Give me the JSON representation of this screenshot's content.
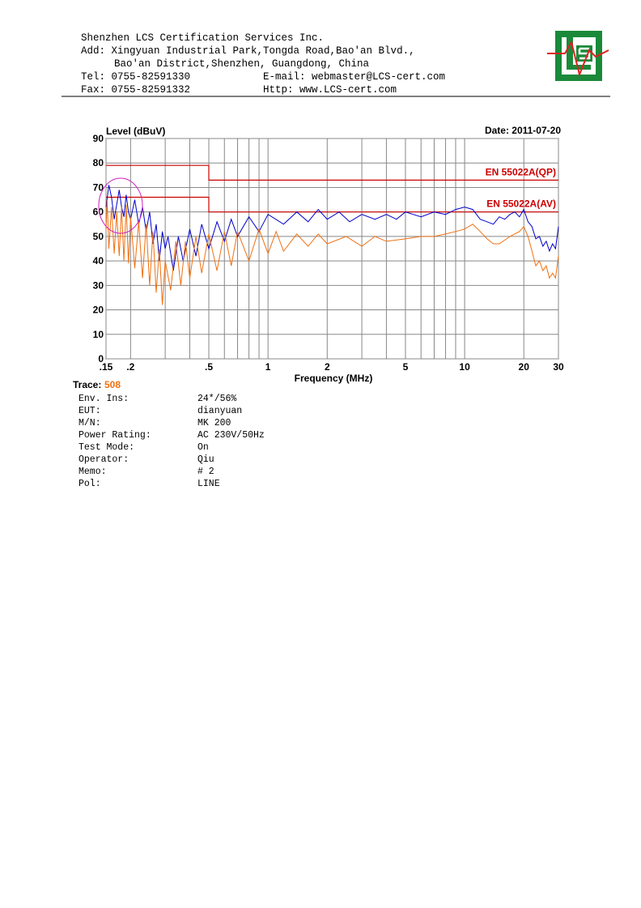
{
  "header": {
    "company": "Shenzhen LCS Certification Services Inc.",
    "address": [
      "Add: Xingyuan Industrial Park,Tongda Road,Bao'an Blvd.,",
      "Bao'an District,Shenzhen, Guangdong, China"
    ],
    "contact": [
      [
        "Tel: 0755-82591330",
        "E-mail: webmaster@LCS-cert.com"
      ],
      [
        "Fax: 0755-82591332",
        "Http: www.LCS-cert.com"
      ]
    ]
  },
  "chart_data": {
    "type": "line",
    "ylabel": "Level (dBuV)",
    "date": "Date: 2011-07-20",
    "xlabel": "Frequency (MHz)",
    "xscale": "log",
    "xlim": [
      0.15,
      30
    ],
    "ylim": [
      0,
      90
    ],
    "xticks": [
      {
        "value": 0.15,
        "label": ".15"
      },
      {
        "value": 0.2,
        "label": ".2"
      },
      {
        "value": 0.5,
        "label": ".5"
      },
      1,
      2,
      5,
      10,
      20,
      30
    ],
    "xgrid": [
      0.3,
      0.4,
      0.6,
      0.7,
      0.8,
      0.9,
      3,
      4,
      6,
      7,
      8,
      9
    ],
    "yticks": [
      0,
      10,
      20,
      30,
      40,
      50,
      60,
      70,
      80,
      90
    ],
    "grid": true,
    "series": [
      {
        "name": "EN 55022A(QP)",
        "color": "#cc0000",
        "x": [
          0.15,
          0.5,
          0.5,
          30
        ],
        "values": [
          79,
          79,
          73,
          73
        ]
      },
      {
        "name": "EN 55022A(AV)",
        "color": "#cc0000",
        "x": [
          0.15,
          0.5,
          0.5,
          30
        ],
        "values": [
          66,
          66,
          60,
          60
        ]
      },
      {
        "color": "#0000cc",
        "x": [
          0.15,
          0.155,
          0.16,
          0.165,
          0.17,
          0.175,
          0.18,
          0.185,
          0.19,
          0.195,
          0.2,
          0.21,
          0.22,
          0.23,
          0.24,
          0.25,
          0.26,
          0.27,
          0.28,
          0.29,
          0.3,
          0.31,
          0.33,
          0.35,
          0.37,
          0.4,
          0.43,
          0.46,
          0.5,
          0.55,
          0.6,
          0.65,
          0.7,
          0.8,
          0.9,
          1,
          1.2,
          1.4,
          1.6,
          1.8,
          2,
          2.3,
          2.6,
          3,
          3.5,
          4,
          4.5,
          5,
          6,
          7,
          8,
          9,
          10,
          11,
          12,
          13,
          14,
          15,
          16,
          17,
          18,
          19,
          20,
          21,
          22,
          23,
          24,
          25,
          26,
          27,
          28,
          29,
          30
        ],
        "values": [
          62,
          71,
          66,
          57,
          63,
          69,
          62,
          58,
          67,
          60,
          57,
          65,
          55,
          62,
          52,
          60,
          47,
          55,
          40,
          52,
          45,
          50,
          36,
          50,
          40,
          53,
          42,
          55,
          45,
          56,
          48,
          57,
          50,
          58,
          52,
          59,
          55,
          60,
          56,
          61,
          57,
          60,
          56,
          59,
          57,
          59,
          57,
          60,
          58,
          60,
          59,
          61,
          62,
          61,
          57,
          56,
          55,
          58,
          57,
          59,
          60,
          58,
          61,
          56,
          54,
          49,
          50,
          46,
          48,
          44,
          47,
          45,
          54
        ]
      },
      {
        "color": "#f07010",
        "x": [
          0.15,
          0.152,
          0.155,
          0.16,
          0.165,
          0.17,
          0.175,
          0.18,
          0.185,
          0.19,
          0.195,
          0.2,
          0.21,
          0.22,
          0.23,
          0.24,
          0.25,
          0.26,
          0.27,
          0.28,
          0.29,
          0.3,
          0.32,
          0.34,
          0.36,
          0.38,
          0.4,
          0.43,
          0.46,
          0.5,
          0.55,
          0.6,
          0.65,
          0.7,
          0.8,
          0.9,
          1,
          1.1,
          1.2,
          1.4,
          1.6,
          1.8,
          2,
          2.5,
          3,
          3.5,
          4,
          5,
          6,
          7,
          8,
          9,
          10,
          11,
          12,
          13,
          14,
          15,
          17,
          19,
          20,
          21,
          22,
          23,
          24,
          25,
          26,
          27,
          28,
          29,
          30
        ],
        "values": [
          52,
          65,
          45,
          62,
          43,
          60,
          42,
          62,
          40,
          63,
          39,
          58,
          37,
          56,
          33,
          55,
          30,
          52,
          27,
          45,
          22,
          40,
          28,
          48,
          30,
          48,
          33,
          50,
          35,
          51,
          36,
          52,
          38,
          52,
          40,
          53,
          43,
          52,
          44,
          51,
          46,
          51,
          47,
          50,
          46,
          50,
          48,
          49,
          50,
          50,
          51,
          52,
          53,
          55,
          52,
          49,
          47,
          47,
          50,
          52,
          54,
          50,
          44,
          38,
          40,
          36,
          38,
          33,
          35,
          33,
          42
        ]
      }
    ]
  },
  "trace": {
    "label": "Trace:",
    "value": "508"
  },
  "info": [
    [
      "Env. Ins:",
      "24*/56%"
    ],
    [
      "EUT:",
      "dianyuan"
    ],
    [
      "M/N:",
      "MK 200"
    ],
    [
      "Power Rating:",
      "AC 230V/50Hz"
    ],
    [
      "Test Mode:",
      "On"
    ],
    [
      "Operator:",
      "Qiu"
    ],
    [
      "Memo:",
      "# 2"
    ],
    [
      "Pol:",
      "LINE"
    ]
  ]
}
